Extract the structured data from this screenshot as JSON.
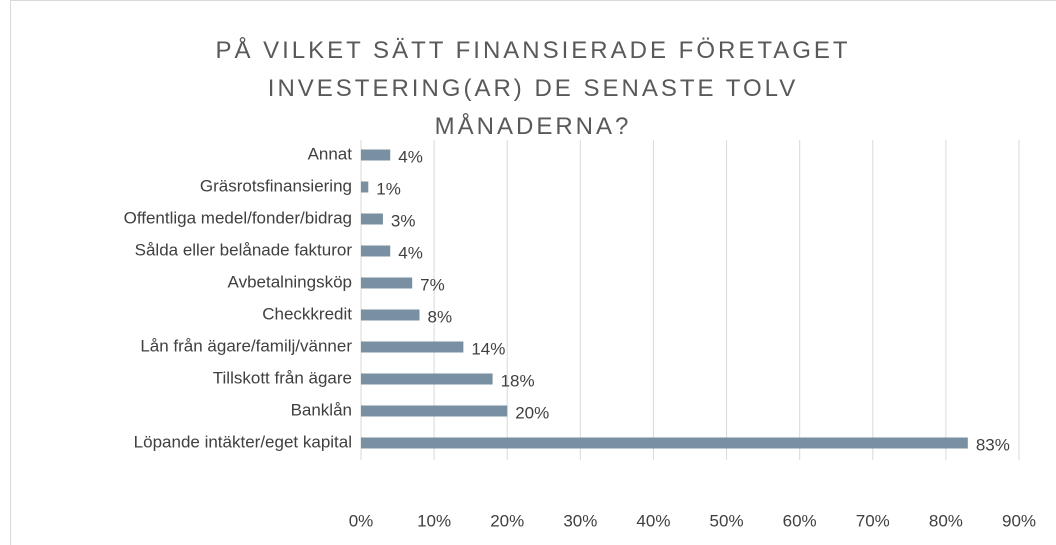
{
  "chart_data": {
    "type": "bar",
    "orientation": "horizontal",
    "title": "PÅ VILKET SÄTT FINANSIERADE FÖRETAGET INVESTERING(AR) DE SENASTE TOLV MÅNADERNA?",
    "categories": [
      "Annat",
      "Gräsrotsfinansiering",
      "Offentliga medel/fonder/bidrag",
      "Sålda eller belånade fakturor",
      "Avbetalningsköp",
      "Checkkredit",
      "Lån från ägare/familj/vänner",
      "Tillskott från ägare",
      "Banklån",
      "Löpande intäkter/eget kapital"
    ],
    "values": [
      4,
      1,
      3,
      4,
      7,
      8,
      14,
      18,
      20,
      83
    ],
    "value_labels": [
      "4%",
      "1%",
      "3%",
      "4%",
      "7%",
      "8%",
      "14%",
      "18%",
      "20%",
      "83%"
    ],
    "color": "#7890a1",
    "xlim": [
      0,
      90
    ],
    "xticks": [
      {
        "value": 0,
        "label": "0%"
      },
      {
        "value": 10,
        "label": "10%"
      },
      {
        "value": 20,
        "label": "20%"
      },
      {
        "value": 30,
        "label": "30%"
      },
      {
        "value": 40,
        "label": "40%"
      },
      {
        "value": 50,
        "label": "50%"
      },
      {
        "value": 60,
        "label": "60%"
      },
      {
        "value": 70,
        "label": "70%"
      },
      {
        "value": 80,
        "label": "80%"
      },
      {
        "value": 90,
        "label": "90%"
      }
    ],
    "grid": true
  }
}
